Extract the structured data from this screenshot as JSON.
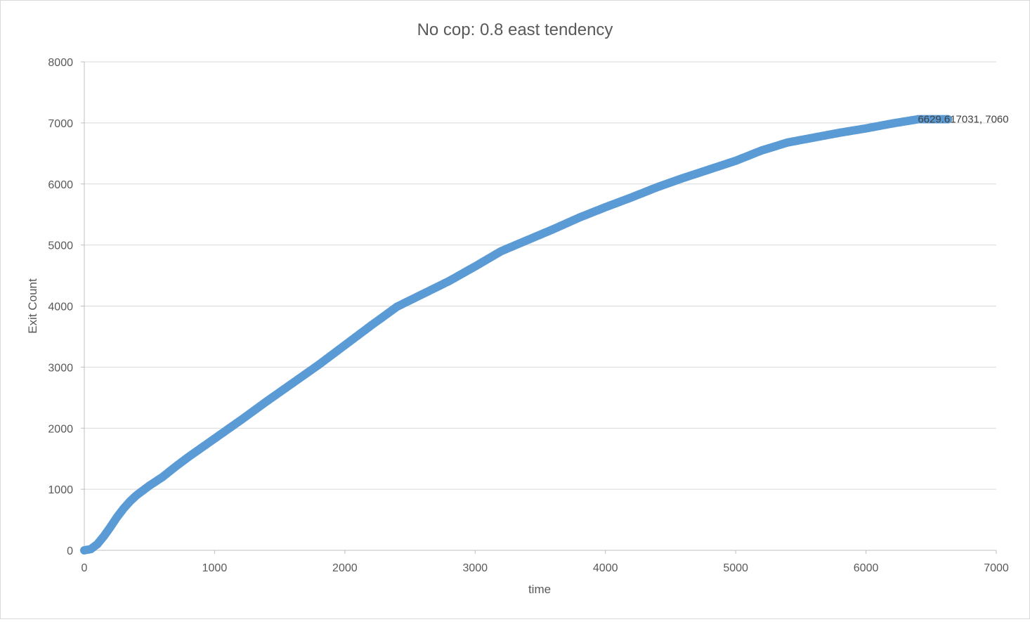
{
  "chart_data": {
    "type": "scatter",
    "title": "No cop: 0.8 east tendency",
    "xlabel": "time",
    "ylabel": "Exit Count",
    "xlim": [
      0,
      7000
    ],
    "ylim": [
      0,
      8000
    ],
    "x_ticks": [
      0,
      1000,
      2000,
      3000,
      4000,
      5000,
      6000,
      7000
    ],
    "y_ticks": [
      0,
      1000,
      2000,
      3000,
      4000,
      5000,
      6000,
      7000,
      8000
    ],
    "x_tick_labels": [
      "0",
      "1000",
      "2000",
      "3000",
      "4000",
      "5000",
      "6000",
      "7000"
    ],
    "y_tick_labels": [
      "0",
      "1000",
      "2000",
      "3000",
      "4000",
      "5000",
      "6000",
      "7000",
      "8000"
    ],
    "grid": "horizontal",
    "legend": "none",
    "series_color": "#5b9bd5",
    "series": [
      {
        "x": [
          0,
          50,
          100,
          150,
          200,
          250,
          300,
          350,
          400,
          500,
          600,
          700,
          800,
          900,
          1000,
          1200,
          1400,
          1600,
          1800,
          2000,
          2200,
          2400,
          2600,
          2800,
          3000,
          3200,
          3400,
          3600,
          3800,
          4000,
          4200,
          4400,
          4600,
          4800,
          5000,
          5200,
          5400,
          5600,
          5800,
          6000,
          6200,
          6400,
          6500,
          6629.617031
        ],
        "y": [
          0,
          20,
          100,
          230,
          380,
          540,
          680,
          800,
          900,
          1060,
          1200,
          1370,
          1530,
          1680,
          1830,
          2130,
          2440,
          2740,
          3040,
          3360,
          3680,
          3990,
          4200,
          4410,
          4650,
          4900,
          5080,
          5260,
          5450,
          5620,
          5780,
          5950,
          6100,
          6240,
          6380,
          6550,
          6680,
          6760,
          6840,
          6910,
          6990,
          7060,
          7060,
          7060
        ]
      }
    ],
    "annotation": {
      "text": "6629.617031, 7060",
      "x": 6629.617031,
      "y": 7060
    }
  }
}
